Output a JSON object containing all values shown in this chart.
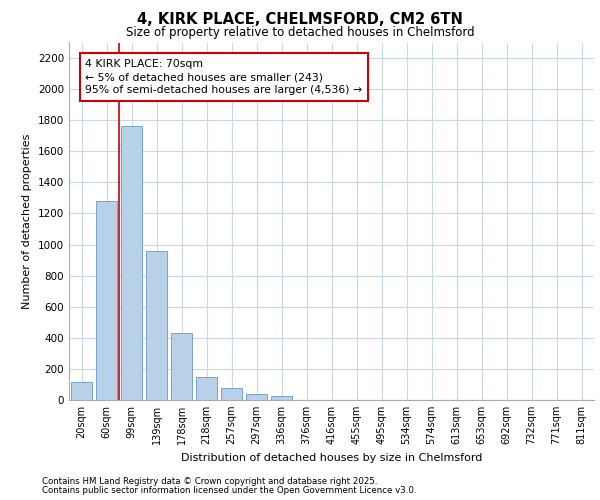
{
  "title_line1": "4, KIRK PLACE, CHELMSFORD, CM2 6TN",
  "title_line2": "Size of property relative to detached houses in Chelmsford",
  "xlabel": "Distribution of detached houses by size in Chelmsford",
  "ylabel": "Number of detached properties",
  "categories": [
    "20sqm",
    "60sqm",
    "99sqm",
    "139sqm",
    "178sqm",
    "218sqm",
    "257sqm",
    "297sqm",
    "336sqm",
    "376sqm",
    "416sqm",
    "455sqm",
    "495sqm",
    "534sqm",
    "574sqm",
    "613sqm",
    "653sqm",
    "692sqm",
    "732sqm",
    "771sqm",
    "811sqm"
  ],
  "values": [
    115,
    1280,
    1760,
    960,
    430,
    150,
    75,
    40,
    25,
    0,
    0,
    0,
    0,
    0,
    0,
    0,
    0,
    0,
    0,
    0,
    0
  ],
  "bar_color": "#b8d0e8",
  "bar_edge_color": "#6699cc",
  "grid_color": "#c8d8ec",
  "background_color": "#ffffff",
  "plot_bg_color": "#ffffff",
  "annotation_title": "4 KIRK PLACE: 70sqm",
  "annotation_line1": "← 5% of detached houses are smaller (243)",
  "annotation_line2": "95% of semi-detached houses are larger (4,536) →",
  "vline_color": "#cc0000",
  "ylim": [
    0,
    2300
  ],
  "yticks": [
    0,
    200,
    400,
    600,
    800,
    1000,
    1200,
    1400,
    1600,
    1800,
    2000,
    2200
  ],
  "footer_line1": "Contains HM Land Registry data © Crown copyright and database right 2025.",
  "footer_line2": "Contains public sector information licensed under the Open Government Licence v3.0."
}
